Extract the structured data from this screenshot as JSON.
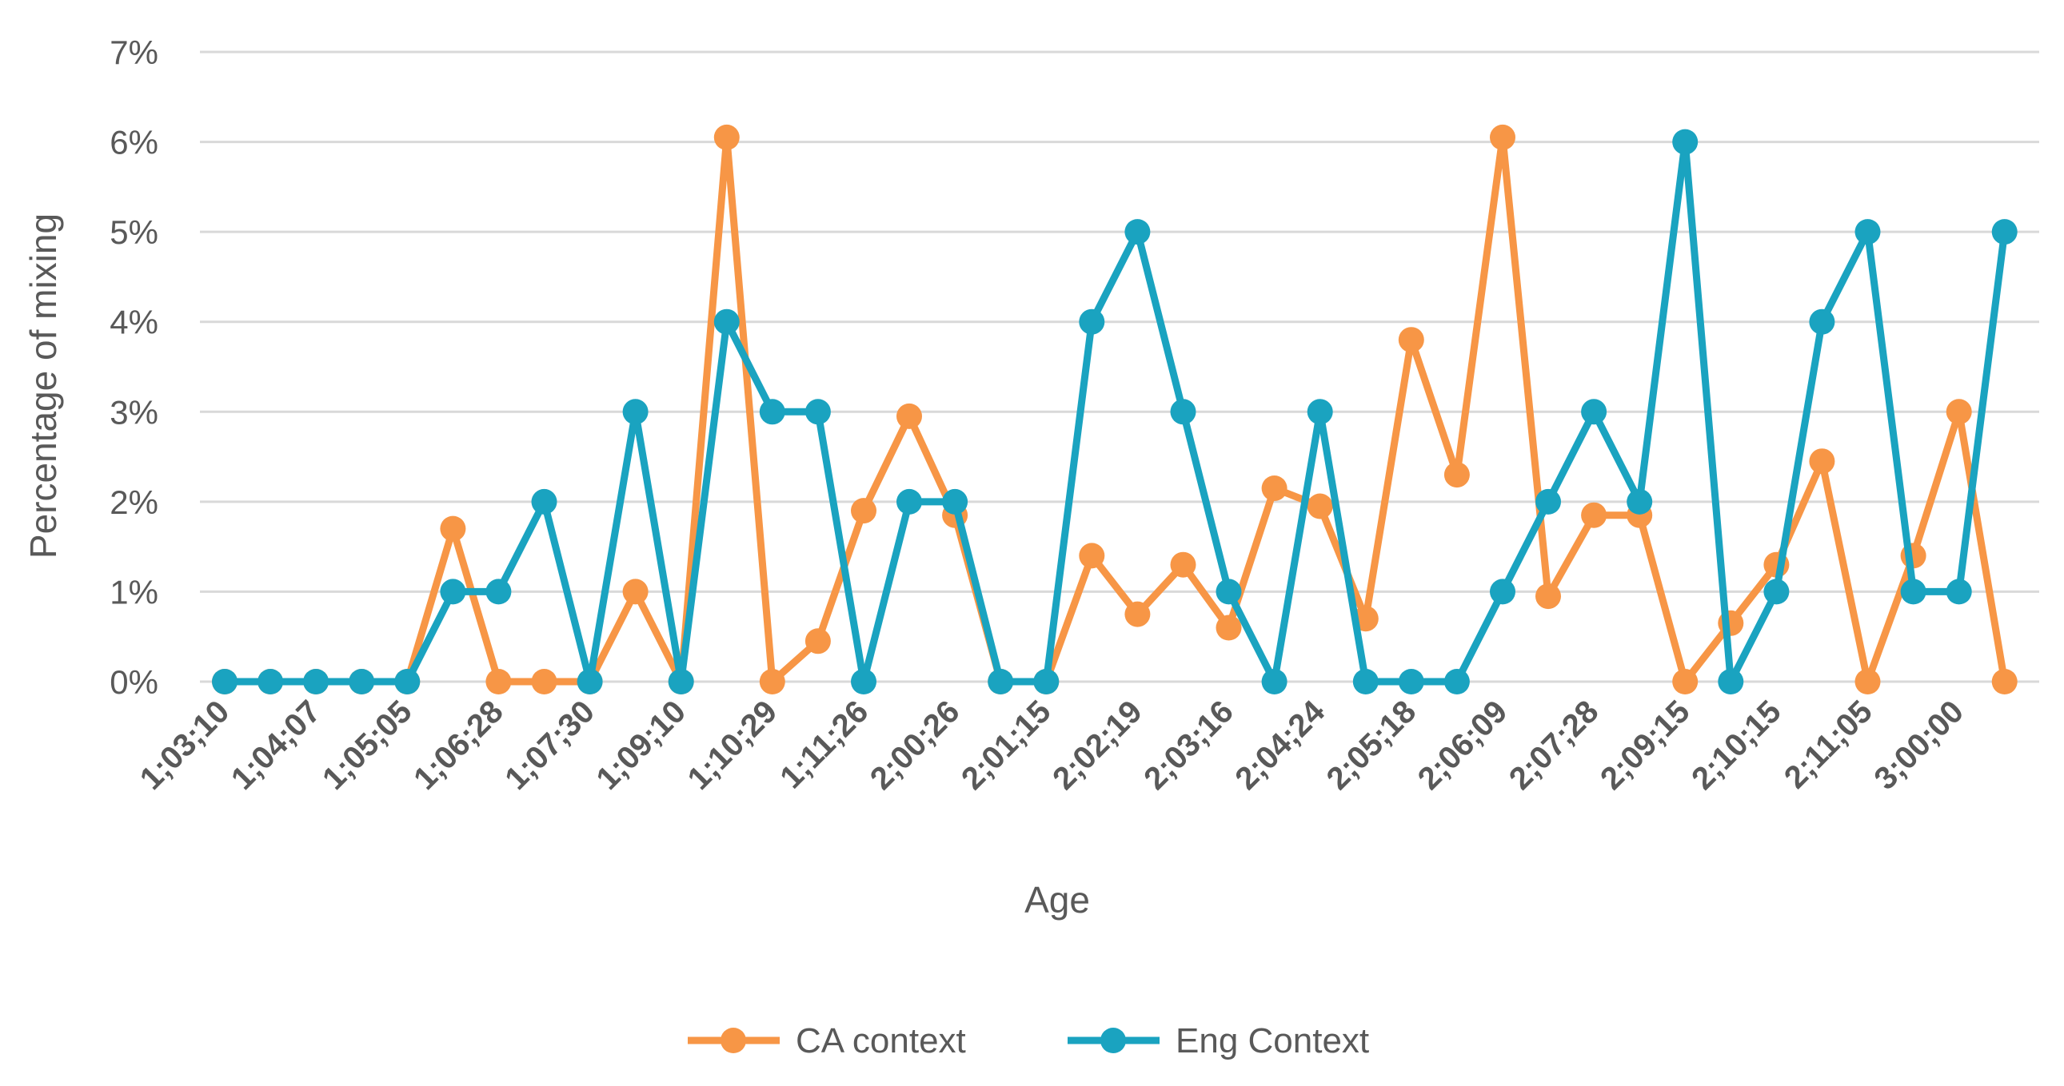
{
  "chart_data": {
    "type": "line",
    "title": "",
    "xlabel": "Age",
    "ylabel": "Percentage of mixing",
    "ylim": [
      0,
      7
    ],
    "ytick_labels": [
      "0%",
      "1%",
      "2%",
      "3%",
      "4%",
      "5%",
      "6%",
      "7%"
    ],
    "categories": [
      "1;03;10",
      "",
      "1;04;07",
      "",
      "1;05;05",
      "",
      "1;06;28",
      "",
      "1;07;30",
      "",
      "1;09;10",
      "",
      "1;10;29",
      "",
      "1;11;26",
      "",
      "2;00;26",
      "",
      "2;01;15",
      "",
      "2;02;19",
      "",
      "2;03;16",
      "",
      "2;04;24",
      "",
      "2;05;18",
      "",
      "2;06;09",
      "",
      "2;07;28",
      "",
      "2;09;15",
      "",
      "2;10;15",
      "",
      "2;11;05",
      "",
      "3;00;00",
      ""
    ],
    "grid": true,
    "legend_position": "bottom",
    "series": [
      {
        "name": "CA context",
        "color": "#F79646",
        "values": [
          0,
          0,
          0,
          0,
          0,
          1.7,
          0,
          0,
          0,
          1.0,
          0,
          6.05,
          0,
          0.45,
          1.9,
          2.95,
          1.85,
          0,
          0,
          1.4,
          0.75,
          1.3,
          0.6,
          2.15,
          1.95,
          0.7,
          3.8,
          2.3,
          6.05,
          0.95,
          1.85,
          1.85,
          0,
          0.65,
          1.3,
          2.45,
          0,
          1.4,
          3.0,
          0
        ]
      },
      {
        "name": "Eng Context",
        "color": "#1AA3C0",
        "values": [
          0,
          0,
          0,
          0,
          0,
          1,
          1,
          2,
          0,
          3,
          0,
          4,
          3,
          3,
          0,
          2,
          2,
          0,
          0,
          4,
          5,
          3,
          1,
          0,
          3,
          0,
          0,
          0,
          1,
          2,
          3,
          2,
          6,
          0,
          1,
          4,
          5,
          1,
          1,
          5
        ]
      }
    ]
  }
}
